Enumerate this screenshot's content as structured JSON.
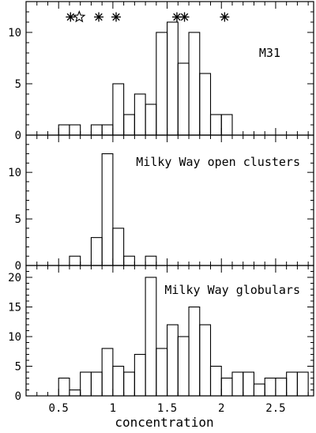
{
  "chart_data": [
    {
      "type": "bar",
      "histogram": true,
      "label": "M31",
      "bin_width": 0.1,
      "bin_starts": [
        0.5,
        0.6,
        0.7,
        0.8,
        0.9,
        1.0,
        1.1,
        1.2,
        1.3,
        1.4,
        1.5,
        1.6,
        1.7,
        1.8,
        1.9,
        2.0,
        2.1
      ],
      "values": [
        1,
        1,
        0,
        1,
        1,
        5,
        2,
        4,
        3,
        10,
        11,
        7,
        10,
        6,
        2,
        2,
        0
      ],
      "ylim": [
        0,
        13
      ],
      "yticks": [
        0,
        5,
        10
      ],
      "xlim": [
        0.2,
        2.85
      ],
      "markers": [
        {
          "symbol": "asterisk",
          "x": 0.61
        },
        {
          "symbol": "open-star",
          "x": 0.69
        },
        {
          "symbol": "asterisk",
          "x": 0.87
        },
        {
          "symbol": "asterisk",
          "x": 1.03
        },
        {
          "symbol": "asterisk",
          "x": 1.59
        },
        {
          "symbol": "asterisk",
          "x": 1.66
        },
        {
          "symbol": "asterisk",
          "x": 2.03
        }
      ],
      "marker_y": 11.5
    },
    {
      "type": "bar",
      "histogram": true,
      "label": "Milky Way open clusters",
      "bin_width": 0.1,
      "bin_starts": [
        0.6,
        0.7,
        0.8,
        0.9,
        1.0,
        1.1,
        1.2,
        1.3
      ],
      "values": [
        1,
        0,
        3,
        12,
        4,
        1,
        0,
        1
      ],
      "ylim": [
        0,
        14
      ],
      "yticks": [
        0,
        5,
        10
      ],
      "xlim": [
        0.2,
        2.85
      ]
    },
    {
      "type": "bar",
      "histogram": true,
      "label": "Milky Way globulars",
      "bin_width": 0.1,
      "bin_starts": [
        0.5,
        0.6,
        0.7,
        0.8,
        0.9,
        1.0,
        1.1,
        1.2,
        1.3,
        1.4,
        1.5,
        1.6,
        1.7,
        1.8,
        1.9,
        2.0,
        2.1,
        2.2,
        2.3,
        2.4,
        2.5,
        2.6,
        2.7
      ],
      "values": [
        3,
        1,
        4,
        4,
        8,
        5,
        4,
        7,
        20,
        8,
        12,
        10,
        15,
        12,
        5,
        3,
        4,
        4,
        2,
        3,
        3,
        4,
        4
      ],
      "ylim": [
        0,
        22
      ],
      "yticks": [
        0,
        5,
        10,
        15,
        20
      ],
      "xlim": [
        0.2,
        2.85
      ]
    }
  ],
  "x_axis": {
    "label": "concentration",
    "ticks": [
      0.5,
      1,
      1.5,
      2,
      2.5
    ],
    "tick_labels": [
      "0.5",
      "1",
      "1.5",
      "2",
      "2.5"
    ],
    "minor_step": 0.1
  }
}
